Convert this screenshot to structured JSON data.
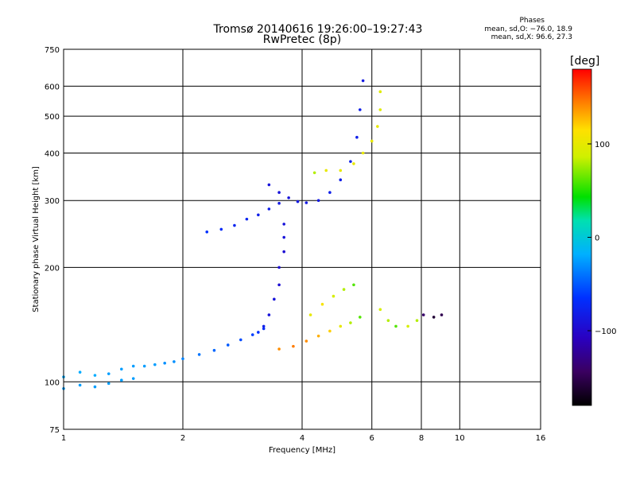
{
  "title": {
    "line1": "Tromsø 20140616 19:26:00–19:27:43",
    "line2": "RwPretec (8p)"
  },
  "stats": {
    "heading": "Phases",
    "line_o": "mean, sd,O: −76.0, 18.9",
    "line_x": "mean, sd,X:  96.6, 27.3"
  },
  "colorbar": {
    "unit_label": "[deg]",
    "ticks": [
      "100",
      "0",
      "−100"
    ],
    "tick_values": [
      100,
      0,
      -100
    ],
    "range": [
      -180,
      180
    ],
    "colormap": "rainbow (black → purple → blue → cyan → green → yellow → orange → red)"
  },
  "chart_data": {
    "type": "scatter",
    "title": "Tromsø 20140616 19:26:00–19:27:43",
    "subtitle": "RwPretec (8p)",
    "xlabel": "Frequency [MHz]",
    "ylabel": "Stationary phase Virtual Height [km]",
    "xscale": "log",
    "yscale": "log",
    "xlim": [
      1,
      16
    ],
    "ylim": [
      75,
      750
    ],
    "xticks": [
      1,
      2,
      4,
      6,
      8,
      10,
      16
    ],
    "xtick_labels": [
      "1",
      "2",
      "4",
      "6",
      "8",
      "10",
      "16"
    ],
    "yticks": [
      75,
      100,
      200,
      300,
      400,
      500,
      600,
      750
    ],
    "ytick_labels": [
      "75",
      "100",
      "200",
      "300",
      "400",
      "500",
      "600",
      "750"
    ],
    "grid": true,
    "color_variable": "phase [deg]",
    "series": [
      {
        "trace": "E / F1 low trace",
        "x": [
          1.0,
          1.1,
          1.2,
          1.3,
          1.4,
          1.5,
          1.6,
          1.7,
          1.8,
          1.9,
          2.0,
          2.2,
          2.4,
          2.6,
          2.8,
          3.0,
          3.1,
          3.2
        ],
        "y": [
          103,
          106,
          104,
          105,
          108,
          110,
          110,
          111,
          112,
          113,
          115,
          118,
          121,
          125,
          129,
          133,
          135,
          138
        ],
        "phase": [
          -20,
          -20,
          -20,
          -25,
          -25,
          -25,
          -25,
          -25,
          -30,
          -30,
          -35,
          -40,
          -45,
          -50,
          -55,
          -60,
          -65,
          -70
        ]
      },
      {
        "trace": "lower sequence (bottom edge)",
        "x": [
          1.0,
          1.1,
          1.2,
          1.3,
          1.4,
          1.5
        ],
        "y": [
          96,
          98,
          97,
          99,
          101,
          102
        ],
        "phase": [
          -25,
          -25,
          -25,
          -25,
          -25,
          -25
        ]
      },
      {
        "trace": "F1 cusp",
        "x": [
          3.2,
          3.3,
          3.4,
          3.5,
          3.5,
          3.6,
          3.6,
          3.6
        ],
        "y": [
          140,
          150,
          165,
          180,
          200,
          220,
          240,
          260
        ],
        "phase": [
          -80,
          -90,
          -90,
          -95,
          -95,
          -95,
          -90,
          -90
        ]
      },
      {
        "trace": "F1 low-frequency branch",
        "x": [
          2.3,
          2.5,
          2.7,
          2.9,
          3.1,
          3.3,
          3.5
        ],
        "y": [
          248,
          252,
          258,
          268,
          275,
          285,
          295
        ],
        "phase": [
          -65,
          -70,
          -75,
          -75,
          -80,
          -80,
          -85
        ]
      },
      {
        "trace": "F2 O-mode trace",
        "x": [
          3.3,
          3.5,
          3.7,
          3.9,
          4.1,
          4.4,
          4.7,
          5.0,
          5.3,
          5.5,
          5.6,
          5.7
        ],
        "y": [
          330,
          315,
          305,
          298,
          296,
          300,
          315,
          340,
          380,
          440,
          520,
          620
        ],
        "phase": [
          -90,
          -90,
          -90,
          -85,
          -85,
          -85,
          -80,
          -80,
          -80,
          -80,
          -80,
          -85
        ]
      },
      {
        "trace": "F2 X-mode trace",
        "x": [
          4.3,
          4.6,
          5.0,
          5.4,
          5.7,
          6.0,
          6.2,
          6.3,
          6.3
        ],
        "y": [
          355,
          360,
          360,
          375,
          400,
          430,
          470,
          520,
          580
        ],
        "phase": [
          80,
          100,
          100,
          100,
          100,
          100,
          100,
          95,
          95
        ]
      },
      {
        "trace": "E / F1 X-mode",
        "x": [
          3.5,
          3.8,
          4.1,
          4.4,
          4.7,
          5.0,
          5.3,
          5.6
        ],
        "y": [
          122,
          124,
          128,
          132,
          136,
          140,
          143,
          148
        ],
        "phase": [
          140,
          145,
          140,
          130,
          120,
          100,
          80,
          60
        ]
      },
      {
        "trace": "mid-band spread",
        "x": [
          4.2,
          4.5,
          4.8,
          5.1,
          5.4
        ],
        "y": [
          150,
          160,
          168,
          175,
          180
        ],
        "phase": [
          100,
          110,
          90,
          80,
          60
        ]
      },
      {
        "trace": "scattered echoes",
        "x": [
          6.3,
          6.6,
          6.9,
          7.4,
          7.8,
          8.1,
          8.6,
          9.0
        ],
        "y": [
          155,
          145,
          140,
          140,
          145,
          150,
          148,
          150
        ],
        "phase": [
          90,
          80,
          60,
          90,
          80,
          -140,
          -160,
          -150
        ]
      }
    ]
  }
}
